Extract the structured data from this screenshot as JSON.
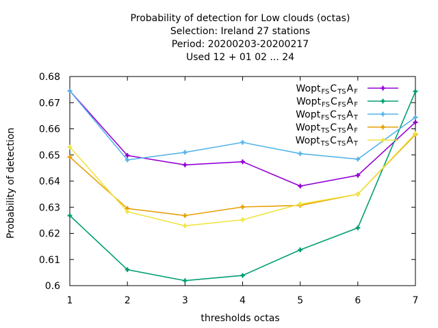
{
  "chart_data": {
    "type": "line",
    "title_lines": [
      "Probability of detection  for Low clouds (octas)",
      "Selection: Ireland     27 stations",
      "Period: 20200203-20200217",
      "Used  12 + 01 02 ... 24"
    ],
    "xlabel": "thresholds octas",
    "ylabel": "Probability of detection",
    "xlim": [
      1,
      7
    ],
    "ylim": [
      0.6,
      0.68
    ],
    "x": [
      1,
      2,
      3,
      4,
      5,
      6,
      7
    ],
    "x_ticks": [
      "1",
      "2",
      "3",
      "4",
      "5",
      "6",
      "7"
    ],
    "y_ticks": [
      "0.6",
      "0.61",
      "0.62",
      "0.63",
      "0.64",
      "0.65",
      "0.66",
      "0.67",
      "0.68"
    ],
    "grid": false,
    "legend_position": "top-right",
    "series": [
      {
        "legend": [
          [
            "Wopt",
            ""
          ],
          [
            "FS",
            "sub"
          ],
          [
            "C",
            ""
          ],
          [
            "TS",
            "sub"
          ],
          [
            "A",
            ""
          ],
          [
            "F",
            "sub"
          ]
        ],
        "color": "#9400d3",
        "values": [
          0.6745,
          0.6498,
          0.6462,
          0.6474,
          0.6381,
          0.6422,
          0.6625
        ]
      },
      {
        "legend": [
          [
            "Wopt",
            ""
          ],
          [
            "FS",
            "sub"
          ],
          [
            "C",
            ""
          ],
          [
            "FS",
            "sub"
          ],
          [
            "A",
            ""
          ],
          [
            "F",
            "sub"
          ]
        ],
        "color": "#009e73",
        "values": [
          0.6268,
          0.6061,
          0.6019,
          0.6039,
          0.6137,
          0.6221,
          0.6743
        ]
      },
      {
        "legend": [
          [
            "Wopt",
            ""
          ],
          [
            "FS",
            "sub"
          ],
          [
            "C",
            ""
          ],
          [
            "TS",
            "sub"
          ],
          [
            "A",
            ""
          ],
          [
            "T",
            "sub"
          ]
        ],
        "color": "#56b4e9",
        "values": [
          0.6745,
          0.6481,
          0.651,
          0.6548,
          0.6505,
          0.6484,
          0.6644
        ]
      },
      {
        "legend": [
          [
            "Wopt",
            ""
          ],
          [
            "TS",
            "sub"
          ],
          [
            "C",
            ""
          ],
          [
            "TS",
            "sub"
          ],
          [
            "A",
            ""
          ],
          [
            "F",
            "sub"
          ]
        ],
        "color": "#e69f00",
        "values": [
          0.6492,
          0.6295,
          0.6268,
          0.6301,
          0.6307,
          0.635,
          0.6578
        ]
      },
      {
        "legend": [
          [
            "Wopt",
            ""
          ],
          [
            "TS",
            "sub"
          ],
          [
            "C",
            ""
          ],
          [
            "TS",
            "sub"
          ],
          [
            "A",
            ""
          ],
          [
            "T",
            "sub"
          ]
        ],
        "color": "#f0e442",
        "values": [
          0.653,
          0.6283,
          0.6229,
          0.6252,
          0.6312,
          0.635,
          0.6582
        ]
      }
    ]
  }
}
